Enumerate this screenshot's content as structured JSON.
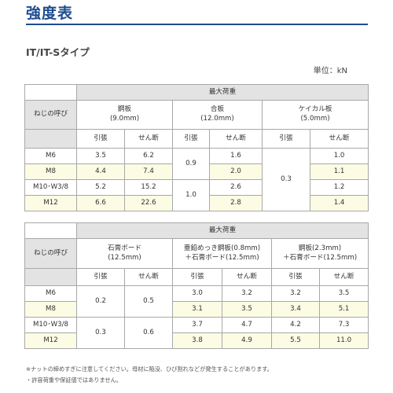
{
  "page": {
    "title": "強度表",
    "subtitle": "IT/IT-Sタイプ",
    "unit": "単位：kN"
  },
  "table1": {
    "max_load": "最大荷重",
    "rowhead": "ねじの呼び",
    "groups": [
      {
        "name": "鋼板",
        "spec": "(9.0mm)"
      },
      {
        "name": "合板",
        "spec": "(12.0mm)"
      },
      {
        "name": "ケイカル板",
        "spec": "(5.0mm)"
      }
    ],
    "sub": [
      "引張",
      "せん断",
      "引張",
      "せん断",
      "引張",
      "せん断"
    ],
    "rows": [
      {
        "size": "M6",
        "v1": "3.5",
        "v2": "6.2",
        "v4": "1.6",
        "v6": "1.0"
      },
      {
        "size": "M8",
        "v1": "4.4",
        "v2": "7.4",
        "v4": "2.0",
        "v6": "1.1"
      },
      {
        "size": "M10･W3/8",
        "v1": "5.2",
        "v2": "15.2",
        "v4": "2.6",
        "v6": "1.2"
      },
      {
        "size": "M12",
        "v1": "6.6",
        "v2": "22.6",
        "v4": "2.8",
        "v6": "1.4"
      }
    ],
    "merged": {
      "plywood_tension_a": "0.9",
      "plywood_tension_b": "1.0",
      "calcium_tension": "0.3"
    }
  },
  "table2": {
    "max_load": "最大荷重",
    "rowhead": "ねじの呼び",
    "groups": [
      {
        "name": "石膏ボード",
        "spec": "(12.5mm)"
      },
      {
        "name": "亜鉛めっき鋼板(0.8mm)",
        "spec": "＋石膏ボード(12.5mm)"
      },
      {
        "name": "鋼板(2.3mm)",
        "spec": "＋石膏ボード(12.5mm)"
      }
    ],
    "sub": [
      "引張",
      "せん断",
      "引張",
      "せん断",
      "引張",
      "せん断"
    ],
    "rows": [
      {
        "size": "M6",
        "v3": "3.0",
        "v4": "3.2",
        "v5": "3.2",
        "v6": "3.5"
      },
      {
        "size": "M8",
        "v3": "3.1",
        "v4": "3.5",
        "v5": "3.4",
        "v6": "5.1"
      },
      {
        "size": "M10･W3/8",
        "v3": "3.7",
        "v4": "4.7",
        "v5": "4.2",
        "v6": "7.3"
      },
      {
        "size": "M12",
        "v3": "3.8",
        "v4": "4.9",
        "v5": "5.5",
        "v6": "11.0"
      }
    ],
    "merged": {
      "gypsum_tension_a": "0.2",
      "gypsum_shear_a": "0.5",
      "gypsum_tension_b": "0.3",
      "gypsum_shear_b": "0.6"
    }
  },
  "notes": [
    "※ナットの締めすぎに注意してください。母材に陥没、ひび割れなどが発生することがあります。",
    "・許容荷重や保証値ではありません。"
  ]
}
